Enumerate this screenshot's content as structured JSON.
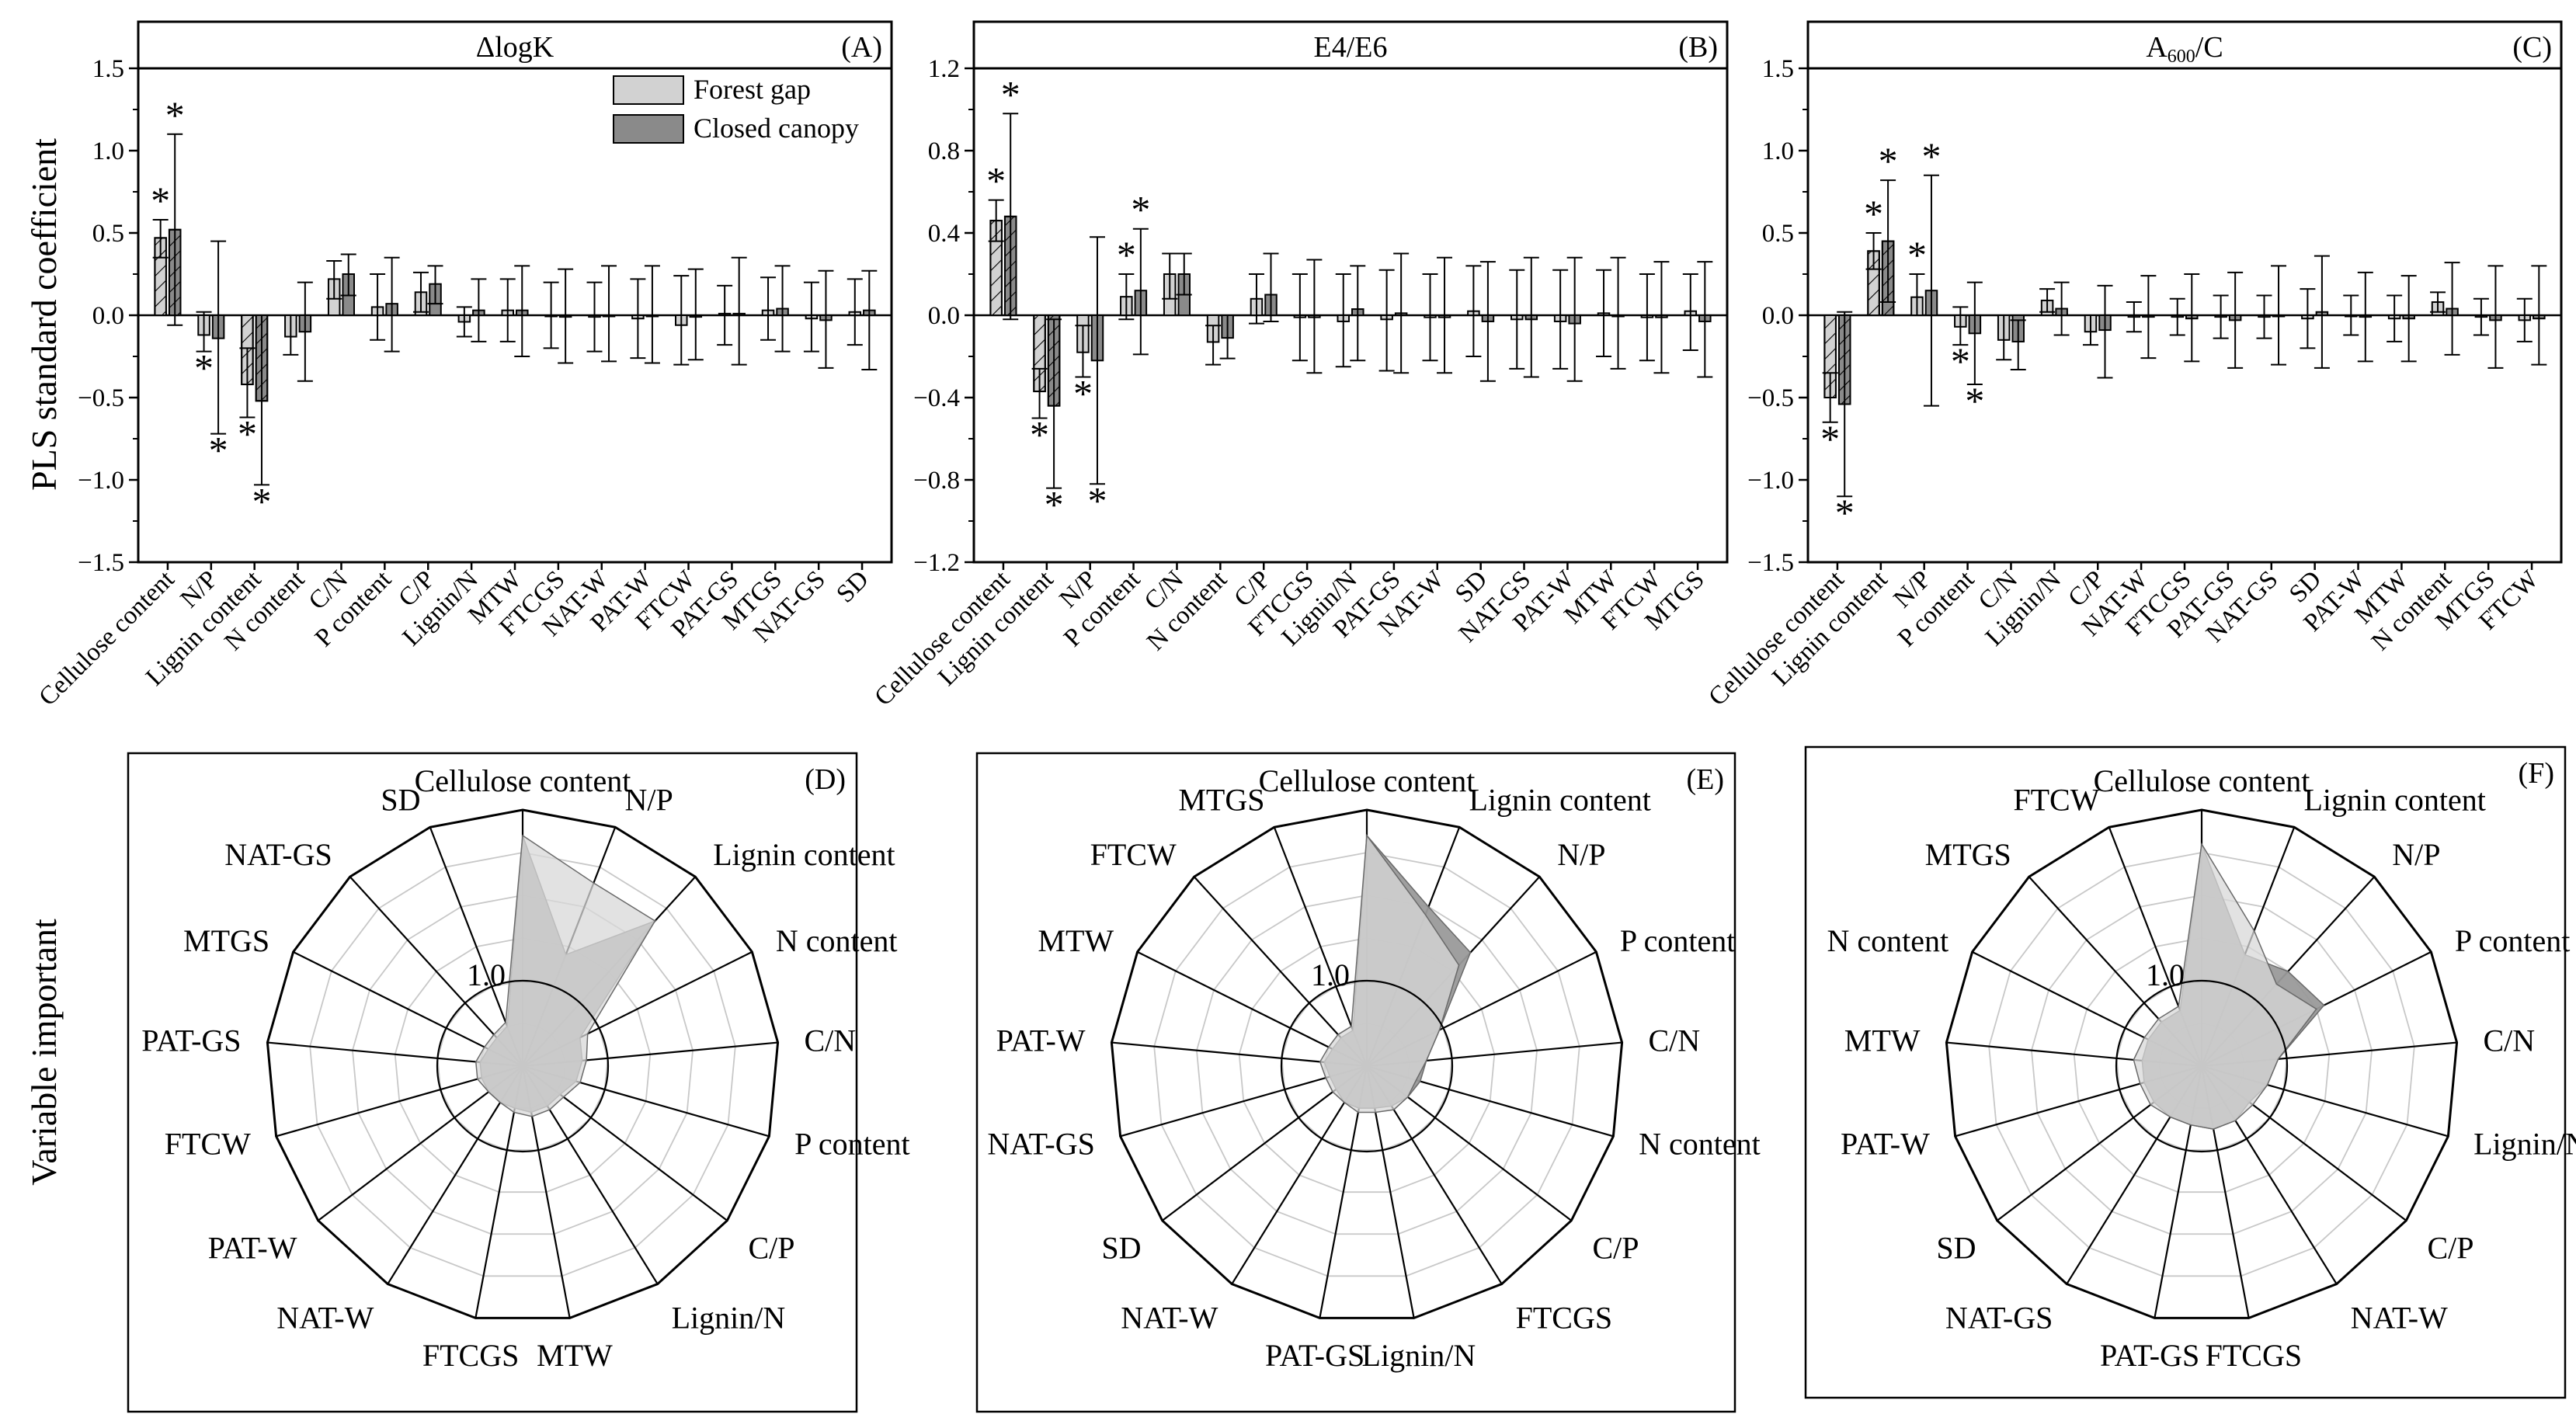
{
  "figure": {
    "ylabel_top": "PLS standard coefficient",
    "ylabel_bottom": "Variable important",
    "legend": [
      {
        "label": "Forest gap",
        "color": "#d2d2d2"
      },
      {
        "label": "Closed canopy",
        "color": "#8a8a8a"
      }
    ],
    "radar_ring_label": "1.0",
    "colors": {
      "forest_gap": "#d2d2d2",
      "closed_canopy": "#8a8a8a",
      "radar_closed": "#9a9a9a",
      "radar_gap": "#d8d8d8"
    }
  },
  "chart_data": [
    {
      "id": "A",
      "type": "bar",
      "panel_label": "(A)",
      "title_html": "ΔlogK",
      "ylim": [
        -1.5,
        1.5
      ],
      "yticks": [
        -1.5,
        -1.0,
        -0.5,
        0.0,
        0.5,
        1.0,
        1.5
      ],
      "ytick_labels": [
        "−1.5",
        "−1.0",
        "−0.5",
        "0.0",
        "0.5",
        "1.0",
        "1.5"
      ],
      "categories": [
        "Cellulose content",
        "N/P",
        "Lignin content",
        "N content",
        "C/N",
        "P content",
        "C/P",
        "Lignin/N",
        "MTW",
        "FTCGS",
        "NAT-W",
        "PAT-W",
        "FTCW",
        "PAT-GS",
        "MTGS",
        "NAT-GS",
        "SD"
      ],
      "series": [
        {
          "name": "Forest gap",
          "values": [
            0.47,
            -0.12,
            -0.42,
            -0.13,
            0.22,
            0.05,
            0.14,
            -0.04,
            0.03,
            0.0,
            -0.01,
            -0.02,
            -0.06,
            0.01,
            0.03,
            -0.02,
            0.02
          ],
          "err_hi": [
            0.58,
            0.02,
            -0.2,
            0.0,
            0.33,
            0.25,
            0.26,
            0.05,
            0.22,
            0.2,
            0.2,
            0.22,
            0.24,
            0.18,
            0.23,
            0.2,
            0.22
          ],
          "err_lo": [
            0.35,
            -0.22,
            -0.62,
            -0.24,
            0.1,
            -0.15,
            0.02,
            -0.13,
            -0.16,
            -0.2,
            -0.22,
            -0.26,
            -0.3,
            -0.18,
            -0.15,
            -0.22,
            -0.18
          ],
          "sig": [
            1,
            1,
            1,
            0,
            0,
            0,
            0,
            0,
            0,
            0,
            0,
            0,
            0,
            0,
            0,
            0,
            0
          ]
        },
        {
          "name": "Closed canopy",
          "values": [
            0.52,
            -0.14,
            -0.52,
            -0.1,
            0.25,
            0.07,
            0.19,
            0.03,
            0.03,
            -0.01,
            0.0,
            0.0,
            -0.01,
            0.01,
            0.04,
            -0.03,
            0.03
          ],
          "err_hi": [
            1.1,
            0.45,
            0.0,
            0.2,
            0.37,
            0.35,
            0.3,
            0.22,
            0.3,
            0.28,
            0.3,
            0.3,
            0.28,
            0.35,
            0.3,
            0.27,
            0.27
          ],
          "err_lo": [
            -0.06,
            -0.72,
            -1.03,
            -0.4,
            0.12,
            -0.22,
            0.07,
            -0.16,
            -0.25,
            -0.29,
            -0.28,
            -0.29,
            -0.27,
            -0.3,
            -0.22,
            -0.32,
            -0.33
          ],
          "sig": [
            1,
            1,
            1,
            0,
            0,
            0,
            0,
            0,
            0,
            0,
            0,
            0,
            0,
            0,
            0,
            0,
            0
          ]
        }
      ]
    },
    {
      "id": "B",
      "type": "bar",
      "panel_label": "(B)",
      "title_html": "E4/E6",
      "ylim": [
        -1.2,
        1.2
      ],
      "yticks": [
        -1.2,
        -0.8,
        -0.4,
        0.0,
        0.4,
        0.8,
        1.2
      ],
      "ytick_labels": [
        "−1.2",
        "−0.8",
        "−0.4",
        "0.0",
        "0.4",
        "0.8",
        "1.2"
      ],
      "categories": [
        "Cellulose content",
        "Lignin content",
        "N/P",
        "P content",
        "C/N",
        "N content",
        "C/P",
        "FTCGS",
        "Lignin/N",
        "PAT-GS",
        "NAT-W",
        "SD",
        "NAT-GS",
        "PAT-W",
        "MTW",
        "FTCW",
        "MTGS"
      ],
      "series": [
        {
          "name": "Forest gap",
          "values": [
            0.46,
            -0.37,
            -0.18,
            0.09,
            0.2,
            -0.13,
            0.08,
            -0.01,
            -0.03,
            -0.02,
            -0.01,
            0.02,
            -0.02,
            -0.03,
            0.01,
            -0.01,
            0.02
          ],
          "err_hi": [
            0.56,
            -0.26,
            -0.05,
            0.2,
            0.3,
            -0.05,
            0.2,
            0.2,
            0.2,
            0.22,
            0.2,
            0.24,
            0.22,
            0.22,
            0.22,
            0.2,
            0.2
          ],
          "err_lo": [
            0.36,
            -0.5,
            -0.3,
            -0.02,
            0.08,
            -0.24,
            -0.04,
            -0.22,
            -0.25,
            -0.27,
            -0.22,
            -0.2,
            -0.26,
            -0.26,
            -0.2,
            -0.22,
            -0.17
          ],
          "sig": [
            1,
            1,
            1,
            1,
            0,
            0,
            0,
            0,
            0,
            0,
            0,
            0,
            0,
            0,
            0,
            0,
            0
          ]
        },
        {
          "name": "Closed canopy",
          "values": [
            0.48,
            -0.44,
            -0.22,
            0.12,
            0.2,
            -0.11,
            0.1,
            -0.01,
            0.03,
            0.01,
            -0.01,
            -0.03,
            -0.02,
            -0.04,
            0.0,
            -0.01,
            -0.03
          ],
          "err_hi": [
            0.98,
            -0.02,
            0.38,
            0.42,
            0.3,
            0.0,
            0.3,
            0.27,
            0.24,
            0.3,
            0.28,
            0.26,
            0.28,
            0.28,
            0.28,
            0.26,
            0.26
          ],
          "err_lo": [
            -0.02,
            -0.84,
            -0.82,
            -0.19,
            0.1,
            -0.21,
            -0.03,
            -0.28,
            -0.22,
            -0.28,
            -0.28,
            -0.32,
            -0.3,
            -0.32,
            -0.26,
            -0.28,
            -0.3
          ],
          "sig": [
            1,
            1,
            1,
            1,
            0,
            0,
            0,
            0,
            0,
            0,
            0,
            0,
            0,
            0,
            0,
            0,
            0
          ]
        }
      ]
    },
    {
      "id": "C",
      "type": "bar",
      "panel_label": "(C)",
      "title_html": "A<tspan font-size=\"24\" dy=\"7\">600</tspan><tspan dy=\"-7\">/C</tspan>",
      "ylim": [
        -1.5,
        1.5
      ],
      "yticks": [
        -1.5,
        -1.0,
        -0.5,
        0.0,
        0.5,
        1.0,
        1.5
      ],
      "ytick_labels": [
        "−1.5",
        "−1.0",
        "−0.5",
        "0.0",
        "0.5",
        "1.0",
        "1.5"
      ],
      "categories": [
        "Cellulose content",
        "Lignin content",
        "N/P",
        "P content",
        "C/N",
        "Lignin/N",
        "C/P",
        "NAT-W",
        "FTCGS",
        "PAT-GS",
        "NAT-GS",
        "SD",
        "PAT-W",
        "MTW",
        "N content",
        "MTGS",
        "FTCW"
      ],
      "series": [
        {
          "name": "Forest gap",
          "values": [
            -0.5,
            0.39,
            0.11,
            -0.07,
            -0.15,
            0.09,
            -0.1,
            -0.01,
            -0.01,
            -0.01,
            -0.01,
            -0.02,
            0.0,
            -0.02,
            0.08,
            -0.01,
            -0.03
          ],
          "err_hi": [
            -0.35,
            0.5,
            0.25,
            0.05,
            0.0,
            0.16,
            0.0,
            0.08,
            0.1,
            0.12,
            0.12,
            0.16,
            0.12,
            0.12,
            0.14,
            0.1,
            0.1
          ],
          "err_lo": [
            -0.65,
            0.28,
            0.0,
            -0.18,
            -0.27,
            0.02,
            -0.18,
            -0.1,
            -0.12,
            -0.14,
            -0.14,
            -0.2,
            -0.12,
            -0.16,
            0.02,
            -0.12,
            -0.16
          ],
          "sig": [
            1,
            1,
            1,
            1,
            0,
            0,
            0,
            0,
            0,
            0,
            0,
            0,
            0,
            0,
            0,
            0,
            0
          ]
        },
        {
          "name": "Closed canopy",
          "values": [
            -0.54,
            0.45,
            0.15,
            -0.11,
            -0.16,
            0.04,
            -0.09,
            -0.01,
            -0.02,
            -0.03,
            0.0,
            0.02,
            -0.01,
            -0.02,
            0.04,
            -0.03,
            -0.02
          ],
          "err_hi": [
            0.02,
            0.82,
            0.85,
            0.2,
            -0.03,
            0.2,
            0.18,
            0.24,
            0.25,
            0.26,
            0.3,
            0.36,
            0.26,
            0.24,
            0.32,
            0.3,
            0.3
          ],
          "err_lo": [
            -1.1,
            0.08,
            -0.55,
            -0.42,
            -0.33,
            -0.12,
            -0.38,
            -0.26,
            -0.28,
            -0.32,
            -0.3,
            -0.32,
            -0.28,
            -0.28,
            -0.24,
            -0.32,
            -0.3
          ],
          "sig": [
            1,
            1,
            1,
            1,
            0,
            0,
            0,
            0,
            0,
            0,
            0,
            0,
            0,
            0,
            0,
            0,
            0
          ]
        }
      ]
    },
    {
      "id": "D",
      "type": "radar",
      "panel_label": "(D)",
      "rmax": 3.0,
      "rings": [
        0.5,
        1.0,
        1.5,
        2.0,
        2.5,
        3.0
      ],
      "ring_label_value": 1.0,
      "axes": [
        "Cellulose content",
        "N/P",
        "Lignin content",
        "N content",
        "C/N",
        "P content",
        "C/P",
        "Lignin/N",
        "MTW",
        "FTCGS",
        "NAT-W",
        "PAT-W",
        "FTCW",
        "PAT-GS",
        "MTGS",
        "NAT-GS",
        "SD"
      ],
      "series": [
        {
          "name": "Forest gap",
          "values": [
            2.7,
            2.3,
            2.3,
            0.85,
            0.75,
            0.7,
            0.6,
            0.6,
            0.6,
            0.55,
            0.5,
            0.5,
            0.55,
            0.55,
            0.5,
            0.5,
            0.55
          ]
        },
        {
          "name": "Closed canopy",
          "values": [
            2.7,
            1.4,
            2.3,
            0.75,
            0.7,
            0.65,
            0.55,
            0.55,
            0.55,
            0.5,
            0.5,
            0.5,
            0.5,
            0.5,
            0.45,
            0.45,
            0.5
          ]
        }
      ]
    },
    {
      "id": "E",
      "type": "radar",
      "panel_label": "(E)",
      "rmax": 3.0,
      "rings": [
        0.5,
        1.0,
        1.5,
        2.0,
        2.5,
        3.0
      ],
      "ring_label_value": 1.0,
      "axes": [
        "Cellulose content",
        "Lignin content",
        "N/P",
        "P content",
        "C/N",
        "N content",
        "C/P",
        "FTCGS",
        "Lignin/N",
        "PAT-GS",
        "NAT-W",
        "SD",
        "NAT-GS",
        "PAT-W",
        "MTW",
        "FTCW",
        "MTGS"
      ],
      "series": [
        {
          "name": "Forest gap",
          "values": [
            2.7,
            1.9,
            1.6,
            0.95,
            0.7,
            0.6,
            0.6,
            0.6,
            0.55,
            0.55,
            0.5,
            0.5,
            0.5,
            0.55,
            0.5,
            0.5,
            0.5
          ]
        },
        {
          "name": "Closed canopy",
          "values": [
            2.7,
            2.0,
            1.8,
            0.95,
            0.7,
            0.65,
            0.6,
            0.55,
            0.5,
            0.5,
            0.5,
            0.45,
            0.45,
            0.5,
            0.45,
            0.45,
            0.45
          ]
        }
      ]
    },
    {
      "id": "F",
      "type": "radar",
      "panel_label": "(F)",
      "rmax": 3.0,
      "rings": [
        0.5,
        1.0,
        1.5,
        2.0,
        2.5,
        3.0
      ],
      "ring_label_value": 1.0,
      "axes": [
        "Cellulose content",
        "Lignin content",
        "N/P",
        "P content",
        "C/N",
        "Lignin/N",
        "C/P",
        "NAT-W",
        "FTCGS",
        "PAT-GS",
        "NAT-GS",
        "SD",
        "PAT-W",
        "MTW",
        "N content",
        "MTGS",
        "FTCW"
      ],
      "series": [
        {
          "name": "Forest gap",
          "values": [
            2.6,
            1.7,
            1.3,
            1.5,
            0.9,
            0.8,
            0.75,
            0.75,
            0.75,
            0.7,
            0.7,
            0.75,
            0.75,
            0.8,
            0.75,
            0.75,
            0.75
          ]
        },
        {
          "name": "Closed canopy",
          "values": [
            2.6,
            1.4,
            1.5,
            1.6,
            0.9,
            0.8,
            0.7,
            0.75,
            0.75,
            0.7,
            0.7,
            0.7,
            0.7,
            0.7,
            0.7,
            0.7,
            0.7
          ]
        }
      ]
    }
  ]
}
